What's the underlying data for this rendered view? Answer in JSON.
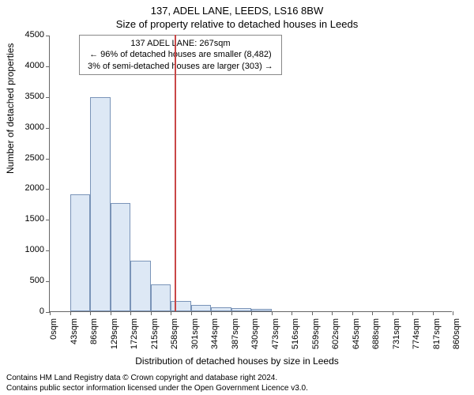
{
  "titles": {
    "main": "137, ADEL LANE, LEEDS, LS16 8BW",
    "sub": "Size of property relative to detached houses in Leeds"
  },
  "info_box": {
    "line1": "137 ADEL LANE: 267sqm",
    "line2": "← 96% of detached houses are smaller (8,482)",
    "line3": "3% of semi-detached houses are larger (303) →"
  },
  "chart": {
    "type": "histogram",
    "y_label": "Number of detached properties",
    "x_label": "Distribution of detached houses by size in Leeds",
    "ylim": [
      0,
      4500
    ],
    "y_ticks": [
      0,
      500,
      1000,
      1500,
      2000,
      2500,
      3000,
      3500,
      4000,
      4500
    ],
    "x_tick_labels": [
      "0sqm",
      "43sqm",
      "86sqm",
      "129sqm",
      "172sqm",
      "215sqm",
      "258sqm",
      "301sqm",
      "344sqm",
      "387sqm",
      "430sqm",
      "473sqm",
      "516sqm",
      "559sqm",
      "602sqm",
      "645sqm",
      "688sqm",
      "731sqm",
      "774sqm",
      "817sqm",
      "860sqm"
    ],
    "x_tick_count": 21,
    "bar_color": "#dde8f5",
    "bar_border_color": "#7a94b8",
    "background_color": "#ffffff",
    "axis_color": "#666666",
    "tick_fontsize": 11,
    "label_fontsize": 12,
    "title_fontsize": 13,
    "marker_line_color": "#c94747",
    "marker_value": 267,
    "x_max": 860,
    "bars": [
      {
        "bin_start": 0,
        "value": 0
      },
      {
        "bin_start": 43,
        "value": 1900
      },
      {
        "bin_start": 86,
        "value": 3480
      },
      {
        "bin_start": 129,
        "value": 1760
      },
      {
        "bin_start": 172,
        "value": 820
      },
      {
        "bin_start": 215,
        "value": 440
      },
      {
        "bin_start": 258,
        "value": 170
      },
      {
        "bin_start": 301,
        "value": 105
      },
      {
        "bin_start": 344,
        "value": 65
      },
      {
        "bin_start": 387,
        "value": 50
      },
      {
        "bin_start": 430,
        "value": 40
      },
      {
        "bin_start": 473,
        "value": 0
      },
      {
        "bin_start": 516,
        "value": 0
      },
      {
        "bin_start": 559,
        "value": 0
      },
      {
        "bin_start": 602,
        "value": 0
      },
      {
        "bin_start": 645,
        "value": 0
      },
      {
        "bin_start": 688,
        "value": 0
      },
      {
        "bin_start": 731,
        "value": 0
      },
      {
        "bin_start": 774,
        "value": 0
      },
      {
        "bin_start": 817,
        "value": 0
      }
    ]
  },
  "footer": {
    "line1": "Contains HM Land Registry data © Crown copyright and database right 2024.",
    "line2": "Contains public sector information licensed under the Open Government Licence v3.0."
  }
}
